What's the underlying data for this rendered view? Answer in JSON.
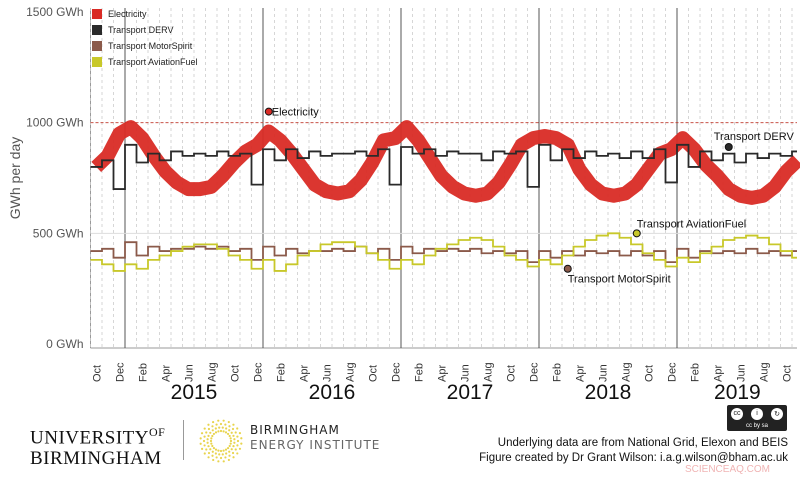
{
  "chart_data": {
    "type": "line",
    "ylabel": "GWh per day",
    "ylim": [
      0,
      1500
    ],
    "yticks": [
      {
        "v": 0,
        "label": "0 GWh"
      },
      {
        "v": 500,
        "label": "500 GWh"
      },
      {
        "v": 1000,
        "label": "1000 GWh"
      },
      {
        "v": 1500,
        "label": "1500 GWh"
      }
    ],
    "reference_line": {
      "value": 1000,
      "color": "#c0392b",
      "style": "dashed"
    },
    "xrange": [
      "2014-10",
      "2019-11"
    ],
    "month_labels": [
      "Oct",
      "Dec",
      "Feb",
      "Apr",
      "Jun",
      "Aug",
      "Oct",
      "Dec",
      "Feb",
      "Apr",
      "Jun",
      "Aug",
      "Oct",
      "Dec",
      "Feb",
      "Apr",
      "Jun",
      "Aug",
      "Oct",
      "Dec",
      "Feb",
      "Apr",
      "Jun",
      "Aug",
      "Oct",
      "Dec",
      "Feb",
      "Apr",
      "Jun",
      "Aug",
      "Oct"
    ],
    "year_labels": [
      "2015",
      "2016",
      "2017",
      "2018",
      "2019"
    ],
    "grid": "vertical dashed monthly, solid at year starts",
    "legend_placement": "top-left",
    "series": [
      {
        "name": "Electricity",
        "color": "#d92b25",
        "style": "line",
        "values": [
          800,
          850,
          950,
          980,
          930,
          850,
          780,
          730,
          700,
          700,
          710,
          760,
          820,
          870,
          900,
          960,
          920,
          860,
          790,
          720,
          690,
          680,
          690,
          740,
          820,
          920,
          930,
          980,
          920,
          840,
          760,
          710,
          680,
          670,
          680,
          730,
          810,
          900,
          930,
          940,
          930,
          900,
          790,
          720,
          680,
          670,
          680,
          720,
          790,
          860,
          880,
          930,
          880,
          810,
          760,
          700,
          670,
          660,
          670,
          710,
          780,
          830
        ]
      },
      {
        "name": "Transport DERV",
        "color": "#2a2a2a",
        "style": "step",
        "values": [
          800,
          830,
          700,
          900,
          820,
          860,
          830,
          870,
          850,
          860,
          850,
          870,
          850,
          860,
          720,
          880,
          830,
          880,
          840,
          870,
          850,
          860,
          860,
          870,
          850,
          880,
          720,
          890,
          860,
          880,
          850,
          870,
          860,
          860,
          830,
          870,
          860,
          870,
          710,
          900,
          830,
          880,
          840,
          870,
          850,
          860,
          840,
          870,
          840,
          880,
          730,
          900,
          800,
          870,
          830,
          860,
          820,
          860,
          840,
          860,
          850,
          870
        ]
      },
      {
        "name": "Transport MotorSpirit",
        "color": "#8b5a4a",
        "style": "step",
        "values": [
          420,
          430,
          390,
          460,
          400,
          440,
          420,
          430,
          430,
          440,
          430,
          440,
          420,
          430,
          380,
          440,
          400,
          430,
          410,
          420,
          420,
          430,
          420,
          440,
          410,
          430,
          380,
          440,
          410,
          430,
          420,
          430,
          420,
          430,
          410,
          420,
          410,
          420,
          370,
          420,
          390,
          420,
          400,
          420,
          410,
          420,
          400,
          420,
          400,
          420,
          370,
          430,
          390,
          420,
          410,
          420,
          410,
          430,
          410,
          420,
          400,
          420
        ]
      },
      {
        "name": "Transport AviationFuel",
        "color": "#c8c82a",
        "style": "step",
        "values": [
          380,
          360,
          330,
          360,
          340,
          380,
          400,
          420,
          440,
          450,
          450,
          430,
          400,
          380,
          340,
          380,
          330,
          360,
          400,
          420,
          450,
          460,
          460,
          440,
          410,
          380,
          340,
          380,
          360,
          400,
          430,
          450,
          470,
          480,
          470,
          440,
          400,
          380,
          350,
          380,
          360,
          400,
          440,
          470,
          490,
          500,
          480,
          450,
          410,
          380,
          350,
          390,
          370,
          410,
          440,
          470,
          480,
          490,
          480,
          450,
          420,
          390
        ]
      }
    ],
    "annotations": [
      {
        "text": "Electricity",
        "date": "2016-01",
        "value": 1050
      },
      {
        "text": "Transport DERV",
        "date": "2019-05",
        "value": 890
      },
      {
        "text": "Transport AviationFuel",
        "date": "2018-09",
        "value": 500
      },
      {
        "text": "Transport MotorSpirit",
        "date": "2018-03",
        "value": 340
      }
    ]
  },
  "footer": {
    "uob_line1": "UNIVERSITY",
    "uob_of": "OF",
    "uob_line2": "BIRMINGHAM",
    "bei_line1": "BIRMINGHAM",
    "bei_line2": "ENERGY INSTITUTE",
    "credit_line1": "Underlying data are from National Grid, Elexon and BEIS",
    "credit_line2": "Figure created by Dr Grant Wilson: i.a.g.wilson@bham.ac.uk",
    "license": "cc by sa",
    "watermark": "SCIENCEAQ.COM"
  }
}
